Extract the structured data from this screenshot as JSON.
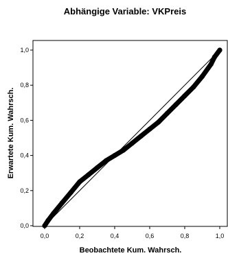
{
  "chart_data": {
    "type": "scatter",
    "title": "Abhängige Variable: VKPreis",
    "xlabel": "Beobachtete Kum. Wahrsch.",
    "ylabel": "Erwartete Kum. Wahrsch.",
    "xlim": [
      0.0,
      1.0
    ],
    "ylim": [
      0.0,
      1.0
    ],
    "x_ticks": [
      "0,0",
      "0,2",
      "0,4",
      "0,6",
      "0,8",
      "1,0"
    ],
    "y_ticks": [
      "0,0",
      "0,2",
      "0,4",
      "0,6",
      "0,8",
      "1,0"
    ],
    "grid": false,
    "reference_line": {
      "from": [
        0.0,
        0.0
      ],
      "to": [
        1.0,
        1.0
      ]
    },
    "curve_points": [
      [
        0.0,
        0.0
      ],
      [
        0.02,
        0.03
      ],
      [
        0.05,
        0.07
      ],
      [
        0.1,
        0.13
      ],
      [
        0.15,
        0.19
      ],
      [
        0.2,
        0.25
      ],
      [
        0.25,
        0.29
      ],
      [
        0.3,
        0.33
      ],
      [
        0.35,
        0.37
      ],
      [
        0.4,
        0.4
      ],
      [
        0.45,
        0.43
      ],
      [
        0.5,
        0.47
      ],
      [
        0.55,
        0.51
      ],
      [
        0.6,
        0.55
      ],
      [
        0.65,
        0.59
      ],
      [
        0.7,
        0.64
      ],
      [
        0.75,
        0.69
      ],
      [
        0.8,
        0.74
      ],
      [
        0.85,
        0.79
      ],
      [
        0.9,
        0.85
      ],
      [
        0.95,
        0.92
      ],
      [
        0.97,
        0.96
      ],
      [
        1.0,
        1.0
      ]
    ],
    "marker_color": "#000000",
    "line_color": "#000000"
  }
}
